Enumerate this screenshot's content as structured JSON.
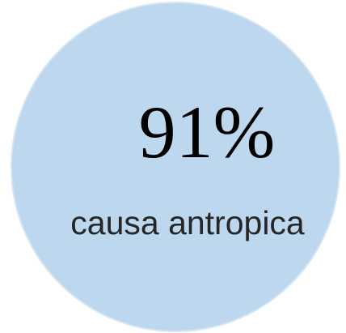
{
  "stat": {
    "value": "91%",
    "label": "causa antropica"
  }
}
